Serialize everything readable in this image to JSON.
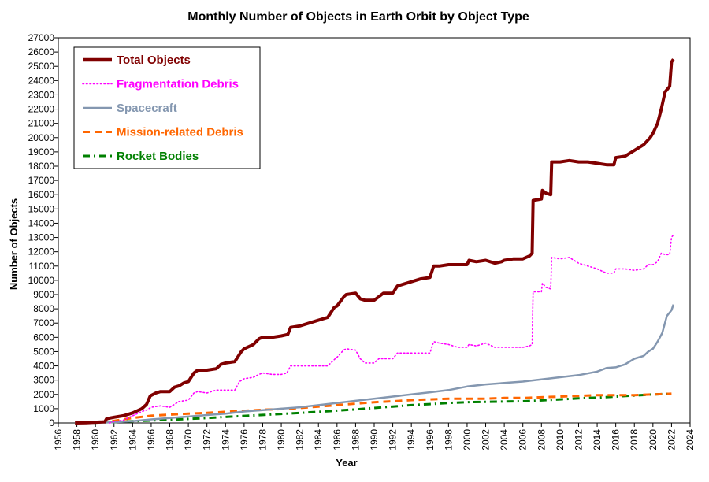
{
  "chart_data": {
    "type": "line",
    "title": "Monthly Number of Objects in Earth Orbit by Object Type",
    "xlabel": "Year",
    "ylabel": "Number of Objects",
    "xlim": [
      1956,
      2024
    ],
    "ylim": [
      0,
      27000
    ],
    "x_ticks": [
      "1956",
      "1958",
      "1960",
      "1962",
      "1964",
      "1966",
      "1968",
      "1970",
      "1972",
      "1974",
      "1976",
      "1978",
      "1980",
      "1982",
      "1984",
      "1986",
      "1988",
      "1990",
      "1992",
      "1994",
      "1996",
      "1998",
      "2000",
      "2002",
      "2004",
      "2006",
      "2008",
      "2010",
      "2012",
      "2014",
      "2016",
      "2018",
      "2020",
      "2022",
      "2024"
    ],
    "y_ticks": [
      "0",
      "1000",
      "2000",
      "3000",
      "4000",
      "5000",
      "6000",
      "7000",
      "8000",
      "9000",
      "10000",
      "11000",
      "12000",
      "13000",
      "14000",
      "15000",
      "16000",
      "17000",
      "18000",
      "19000",
      "20000",
      "21000",
      "22000",
      "23000",
      "24000",
      "25000",
      "26000",
      "27000"
    ],
    "legend_position": "top-left",
    "grid": false,
    "series": [
      {
        "name": "Total Objects",
        "color": "#800000",
        "style": "solid",
        "points": [
          [
            1957.8,
            0
          ],
          [
            1959,
            10
          ],
          [
            1960,
            50
          ],
          [
            1961,
            80
          ],
          [
            1961.2,
            300
          ],
          [
            1962,
            400
          ],
          [
            1963,
            500
          ],
          [
            1964,
            700
          ],
          [
            1965,
            1000
          ],
          [
            1965.5,
            1300
          ],
          [
            1965.9,
            1900
          ],
          [
            1966.5,
            2100
          ],
          [
            1967,
            2200
          ],
          [
            1968,
            2200
          ],
          [
            1968.5,
            2500
          ],
          [
            1969,
            2600
          ],
          [
            1969.5,
            2800
          ],
          [
            1970,
            2900
          ],
          [
            1970.6,
            3500
          ],
          [
            1971,
            3700
          ],
          [
            1972,
            3700
          ],
          [
            1973,
            3800
          ],
          [
            1973.5,
            4100
          ],
          [
            1974,
            4200
          ],
          [
            1975,
            4300
          ],
          [
            1975.7,
            5000
          ],
          [
            1976,
            5200
          ],
          [
            1977,
            5500
          ],
          [
            1977.6,
            5900
          ],
          [
            1978,
            6000
          ],
          [
            1979,
            6000
          ],
          [
            1980,
            6100
          ],
          [
            1980.7,
            6200
          ],
          [
            1981,
            6700
          ],
          [
            1982,
            6800
          ],
          [
            1983,
            7000
          ],
          [
            1984,
            7200
          ],
          [
            1985,
            7400
          ],
          [
            1985.7,
            8100
          ],
          [
            1986,
            8200
          ],
          [
            1986.8,
            8900
          ],
          [
            1987,
            9000
          ],
          [
            1988,
            9100
          ],
          [
            1988.5,
            8700
          ],
          [
            1989,
            8600
          ],
          [
            1990,
            8600
          ],
          [
            1990.6,
            8900
          ],
          [
            1991,
            9100
          ],
          [
            1992,
            9100
          ],
          [
            1992.5,
            9600
          ],
          [
            1993,
            9700
          ],
          [
            1994,
            9900
          ],
          [
            1995,
            10100
          ],
          [
            1996,
            10200
          ],
          [
            1996.4,
            11000
          ],
          [
            1997,
            11000
          ],
          [
            1998,
            11100
          ],
          [
            1999,
            11100
          ],
          [
            2000,
            11100
          ],
          [
            2000.2,
            11400
          ],
          [
            2001,
            11300
          ],
          [
            2002,
            11400
          ],
          [
            2003,
            11200
          ],
          [
            2003.7,
            11300
          ],
          [
            2004,
            11400
          ],
          [
            2005,
            11500
          ],
          [
            2006,
            11500
          ],
          [
            2006.7,
            11700
          ],
          [
            2007,
            11900
          ],
          [
            2007.1,
            15600
          ],
          [
            2008,
            15700
          ],
          [
            2008.1,
            16300
          ],
          [
            2008.5,
            16100
          ],
          [
            2009,
            16000
          ],
          [
            2009.1,
            18300
          ],
          [
            2010,
            18300
          ],
          [
            2011,
            18400
          ],
          [
            2012,
            18300
          ],
          [
            2013,
            18300
          ],
          [
            2014,
            18200
          ],
          [
            2015,
            18100
          ],
          [
            2015.8,
            18100
          ],
          [
            2016,
            18600
          ],
          [
            2017,
            18700
          ],
          [
            2018,
            19100
          ],
          [
            2019,
            19500
          ],
          [
            2019.7,
            20000
          ],
          [
            2020,
            20300
          ],
          [
            2020.5,
            21000
          ],
          [
            2020.9,
            22000
          ],
          [
            2021.3,
            23200
          ],
          [
            2021.8,
            23600
          ],
          [
            2022,
            25300
          ],
          [
            2022.2,
            25500
          ]
        ]
      },
      {
        "name": "Fragmentation Debris",
        "color": "#ff00ff",
        "style": "dotted",
        "points": [
          [
            1961.5,
            0
          ],
          [
            1962,
            100
          ],
          [
            1963,
            200
          ],
          [
            1964,
            500
          ],
          [
            1965,
            800
          ],
          [
            1965.5,
            900
          ],
          [
            1966,
            1100
          ],
          [
            1967,
            1200
          ],
          [
            1968,
            1100
          ],
          [
            1968.5,
            1300
          ],
          [
            1969,
            1500
          ],
          [
            1970,
            1600
          ],
          [
            1970.6,
            2100
          ],
          [
            1971,
            2200
          ],
          [
            1972,
            2100
          ],
          [
            1973,
            2300
          ],
          [
            1974,
            2300
          ],
          [
            1975,
            2300
          ],
          [
            1975.5,
            2900
          ],
          [
            1976,
            3100
          ],
          [
            1977,
            3200
          ],
          [
            1977.6,
            3400
          ],
          [
            1978,
            3500
          ],
          [
            1979,
            3400
          ],
          [
            1980,
            3400
          ],
          [
            1980.6,
            3500
          ],
          [
            1981,
            4000
          ],
          [
            1982,
            4000
          ],
          [
            1983,
            4000
          ],
          [
            1984,
            4000
          ],
          [
            1985,
            4000
          ],
          [
            1985.8,
            4500
          ],
          [
            1986,
            4600
          ],
          [
            1986.7,
            5100
          ],
          [
            1987,
            5200
          ],
          [
            1988,
            5100
          ],
          [
            1988.5,
            4500
          ],
          [
            1989,
            4200
          ],
          [
            1990,
            4200
          ],
          [
            1990.5,
            4500
          ],
          [
            1991,
            4500
          ],
          [
            1992,
            4500
          ],
          [
            1992.5,
            4900
          ],
          [
            1993,
            4900
          ],
          [
            1994,
            4900
          ],
          [
            1995,
            4900
          ],
          [
            1996,
            4900
          ],
          [
            1996.4,
            5700
          ],
          [
            1997,
            5600
          ],
          [
            1998,
            5500
          ],
          [
            1999,
            5300
          ],
          [
            2000,
            5300
          ],
          [
            2000.2,
            5500
          ],
          [
            2001,
            5400
          ],
          [
            2002,
            5600
          ],
          [
            2003,
            5300
          ],
          [
            2004,
            5300
          ],
          [
            2005,
            5300
          ],
          [
            2006,
            5300
          ],
          [
            2006.7,
            5400
          ],
          [
            2007,
            5500
          ],
          [
            2007.1,
            9200
          ],
          [
            2008,
            9200
          ],
          [
            2008.1,
            9800
          ],
          [
            2008.5,
            9500
          ],
          [
            2009,
            9400
          ],
          [
            2009.1,
            11600
          ],
          [
            2010,
            11500
          ],
          [
            2011,
            11600
          ],
          [
            2012,
            11200
          ],
          [
            2013,
            11000
          ],
          [
            2014,
            10800
          ],
          [
            2015,
            10500
          ],
          [
            2015.8,
            10500
          ],
          [
            2016,
            10800
          ],
          [
            2017,
            10800
          ],
          [
            2018,
            10700
          ],
          [
            2019,
            10800
          ],
          [
            2019.5,
            11100
          ],
          [
            2020,
            11100
          ],
          [
            2020.5,
            11300
          ],
          [
            2020.9,
            11900
          ],
          [
            2021.3,
            11800
          ],
          [
            2021.8,
            11800
          ],
          [
            2022,
            13000
          ],
          [
            2022.2,
            13200
          ]
        ]
      },
      {
        "name": "Spacecraft",
        "color": "#8497b0",
        "style": "solid",
        "points": [
          [
            1957.8,
            0
          ],
          [
            1960,
            10
          ],
          [
            1962,
            50
          ],
          [
            1964,
            120
          ],
          [
            1966,
            250
          ],
          [
            1968,
            350
          ],
          [
            1970,
            450
          ],
          [
            1972,
            550
          ],
          [
            1974,
            650
          ],
          [
            1976,
            800
          ],
          [
            1978,
            900
          ],
          [
            1980,
            1000
          ],
          [
            1982,
            1100
          ],
          [
            1984,
            1250
          ],
          [
            1986,
            1400
          ],
          [
            1988,
            1550
          ],
          [
            1990,
            1700
          ],
          [
            1992,
            1850
          ],
          [
            1994,
            2000
          ],
          [
            1996,
            2150
          ],
          [
            1998,
            2300
          ],
          [
            2000,
            2550
          ],
          [
            2002,
            2700
          ],
          [
            2004,
            2800
          ],
          [
            2006,
            2900
          ],
          [
            2008,
            3050
          ],
          [
            2010,
            3200
          ],
          [
            2012,
            3350
          ],
          [
            2014,
            3600
          ],
          [
            2015,
            3850
          ],
          [
            2016,
            3900
          ],
          [
            2017,
            4100
          ],
          [
            2018,
            4500
          ],
          [
            2019,
            4700
          ],
          [
            2019.5,
            5000
          ],
          [
            2020,
            5200
          ],
          [
            2020.5,
            5700
          ],
          [
            2021,
            6300
          ],
          [
            2021.5,
            7500
          ],
          [
            2022,
            7900
          ],
          [
            2022.2,
            8300
          ]
        ]
      },
      {
        "name": "Mission-related Debris",
        "color": "#ff6600",
        "style": "dashed",
        "points": [
          [
            1958,
            0
          ],
          [
            1960,
            50
          ],
          [
            1962,
            150
          ],
          [
            1964,
            350
          ],
          [
            1966,
            500
          ],
          [
            1968,
            580
          ],
          [
            1970,
            650
          ],
          [
            1972,
            700
          ],
          [
            1974,
            780
          ],
          [
            1976,
            850
          ],
          [
            1978,
            920
          ],
          [
            1980,
            970
          ],
          [
            1982,
            1050
          ],
          [
            1984,
            1150
          ],
          [
            1986,
            1250
          ],
          [
            1988,
            1350
          ],
          [
            1990,
            1450
          ],
          [
            1992,
            1520
          ],
          [
            1994,
            1600
          ],
          [
            1996,
            1650
          ],
          [
            1998,
            1700
          ],
          [
            2000,
            1700
          ],
          [
            2002,
            1700
          ],
          [
            2004,
            1750
          ],
          [
            2006,
            1750
          ],
          [
            2008,
            1800
          ],
          [
            2010,
            1850
          ],
          [
            2012,
            1900
          ],
          [
            2014,
            1950
          ],
          [
            2016,
            1950
          ],
          [
            2018,
            1950
          ],
          [
            2020,
            2000
          ],
          [
            2022,
            2050
          ]
        ]
      },
      {
        "name": "Rocket Bodies",
        "color": "#008000",
        "style": "dashdot",
        "points": [
          [
            1958,
            0
          ],
          [
            1960,
            20
          ],
          [
            1962,
            60
          ],
          [
            1964,
            120
          ],
          [
            1966,
            170
          ],
          [
            1968,
            220
          ],
          [
            1970,
            280
          ],
          [
            1972,
            340
          ],
          [
            1974,
            420
          ],
          [
            1976,
            490
          ],
          [
            1978,
            560
          ],
          [
            1980,
            630
          ],
          [
            1982,
            700
          ],
          [
            1984,
            780
          ],
          [
            1986,
            860
          ],
          [
            1988,
            950
          ],
          [
            1990,
            1050
          ],
          [
            1992,
            1150
          ],
          [
            1994,
            1250
          ],
          [
            1996,
            1320
          ],
          [
            1998,
            1400
          ],
          [
            2000,
            1450
          ],
          [
            2002,
            1480
          ],
          [
            2004,
            1500
          ],
          [
            2006,
            1520
          ],
          [
            2008,
            1580
          ],
          [
            2010,
            1650
          ],
          [
            2012,
            1720
          ],
          [
            2014,
            1780
          ],
          [
            2016,
            1850
          ],
          [
            2018,
            1920
          ],
          [
            2020,
            2000
          ],
          [
            2022,
            2050
          ]
        ]
      }
    ]
  }
}
